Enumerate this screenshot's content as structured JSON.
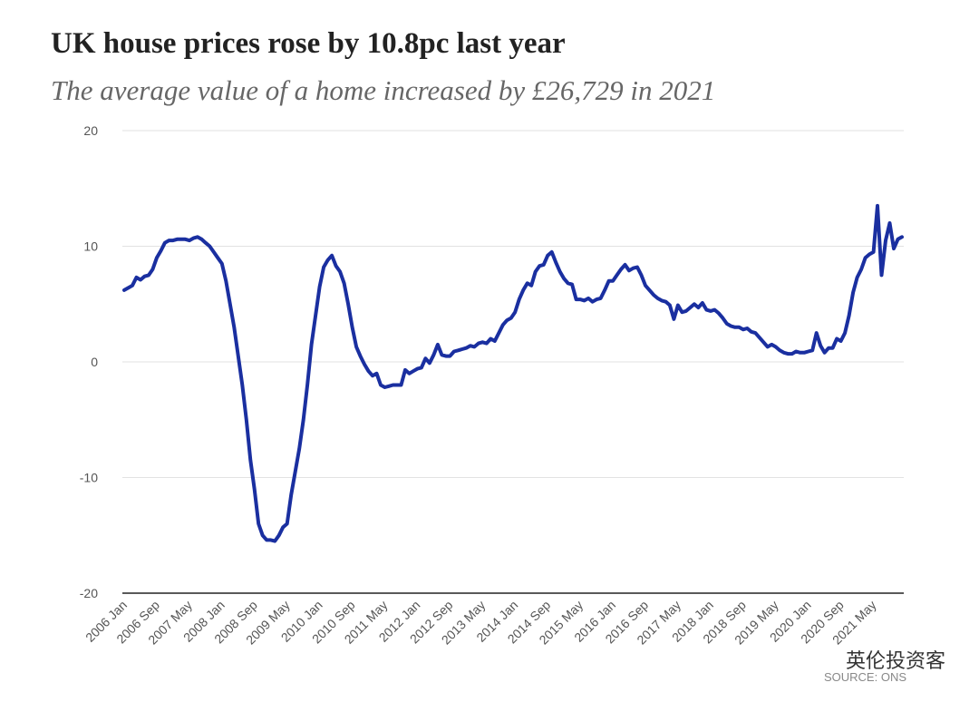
{
  "chart_data": {
    "type": "line",
    "title": "UK house prices rose by 10.8pc last year",
    "subtitle": "The average value of a home increased by £26,729 in 2021",
    "source": "SOURCE: ONS",
    "watermark": "英伦投资客",
    "color": "#1a2fa0",
    "ylim": [
      -20,
      20
    ],
    "yticks": [
      -20,
      -10,
      0,
      10,
      20
    ],
    "grid": true,
    "categories": [
      "2006 Jan",
      null,
      null,
      null,
      null,
      null,
      null,
      null,
      "2006 Sep",
      null,
      null,
      null,
      null,
      null,
      null,
      null,
      "2007 May",
      null,
      null,
      null,
      null,
      null,
      null,
      null,
      "2008 Jan",
      null,
      null,
      null,
      null,
      null,
      null,
      null,
      "2008 Sep",
      null,
      null,
      null,
      null,
      null,
      null,
      null,
      "2009 May",
      null,
      null,
      null,
      null,
      null,
      null,
      null,
      "2010 Jan",
      null,
      null,
      null,
      null,
      null,
      null,
      null,
      "2010 Sep",
      null,
      null,
      null,
      null,
      null,
      null,
      null,
      "2011 May",
      null,
      null,
      null,
      null,
      null,
      null,
      null,
      "2012 Jan",
      null,
      null,
      null,
      null,
      null,
      null,
      null,
      "2012 Sep",
      null,
      null,
      null,
      null,
      null,
      null,
      null,
      "2013 May",
      null,
      null,
      null,
      null,
      null,
      null,
      null,
      "2014 Jan",
      null,
      null,
      null,
      null,
      null,
      null,
      null,
      "2014 Sep",
      null,
      null,
      null,
      null,
      null,
      null,
      null,
      "2015 May",
      null,
      null,
      null,
      null,
      null,
      null,
      null,
      "2016 Jan",
      null,
      null,
      null,
      null,
      null,
      null,
      null,
      "2016 Sep",
      null,
      null,
      null,
      null,
      null,
      null,
      null,
      "2017 May",
      null,
      null,
      null,
      null,
      null,
      null,
      null,
      "2018 Jan",
      null,
      null,
      null,
      null,
      null,
      null,
      null,
      "2018 Sep",
      null,
      null,
      null,
      null,
      null,
      null,
      null,
      "2019 May",
      null,
      null,
      null,
      null,
      null,
      null,
      null,
      "2020 Jan",
      null,
      null,
      null,
      null,
      null,
      null,
      null,
      "2020 Sep",
      null,
      null,
      null,
      null,
      null,
      null,
      null,
      "2021 May",
      null,
      null,
      null,
      null,
      null,
      null,
      null
    ],
    "values": [
      6.2,
      6.4,
      6.6,
      7.3,
      7.1,
      7.4,
      7.5,
      8.0,
      9.0,
      9.6,
      10.3,
      10.5,
      10.5,
      10.6,
      10.6,
      10.6,
      10.5,
      10.7,
      10.8,
      10.6,
      10.3,
      10.0,
      9.5,
      9.0,
      8.5,
      7.0,
      5.0,
      3.0,
      0.5,
      -2.0,
      -5.0,
      -8.5,
      -11.0,
      -14.0,
      -15.0,
      -15.4,
      -15.4,
      -15.5,
      -15.0,
      -14.3,
      -14.0,
      -11.5,
      -9.5,
      -7.5,
      -5.0,
      -2.0,
      1.5,
      4.0,
      6.5,
      8.2,
      8.8,
      9.2,
      8.3,
      7.8,
      6.8,
      5.0,
      3.0,
      1.3,
      0.5,
      -0.2,
      -0.8,
      -1.2,
      -1.0,
      -2.0,
      -2.2,
      -2.1,
      -2.0,
      -2.0,
      -2.0,
      -0.7,
      -1.0,
      -0.8,
      -0.6,
      -0.5,
      0.3,
      -0.1,
      0.6,
      1.5,
      0.6,
      0.5,
      0.5,
      0.9,
      1.0,
      1.1,
      1.2,
      1.4,
      1.3,
      1.6,
      1.7,
      1.6,
      2.0,
      1.8,
      2.5,
      3.2,
      3.6,
      3.8,
      4.3,
      5.4,
      6.2,
      6.8,
      6.6,
      7.8,
      8.3,
      8.4,
      9.2,
      9.5,
      8.6,
      7.8,
      7.2,
      6.8,
      6.7,
      5.4,
      5.4,
      5.3,
      5.5,
      5.2,
      5.4,
      5.5,
      6.2,
      7.0,
      7.0,
      7.5,
      8.0,
      8.4,
      7.9,
      8.1,
      8.2,
      7.5,
      6.6,
      6.2,
      5.8,
      5.5,
      5.3,
      5.2,
      4.9,
      3.7,
      4.9,
      4.3,
      4.4,
      4.7,
      5.0,
      4.7,
      5.1,
      4.5,
      4.4,
      4.5,
      4.2,
      3.8,
      3.3,
      3.1,
      3.0,
      3.0,
      2.8,
      2.9,
      2.6,
      2.5,
      2.1,
      1.7,
      1.3,
      1.5,
      1.3,
      1.0,
      0.8,
      0.7,
      0.7,
      0.9,
      0.8,
      0.8,
      0.9,
      1.0,
      2.5,
      1.4,
      0.8,
      1.2,
      1.2,
      2.0,
      1.8,
      2.5,
      4.0,
      6.0,
      7.3,
      8.0,
      9.0,
      9.3,
      9.5,
      13.5,
      7.5,
      10.5,
      12.0,
      9.8,
      10.6,
      10.8
    ]
  }
}
